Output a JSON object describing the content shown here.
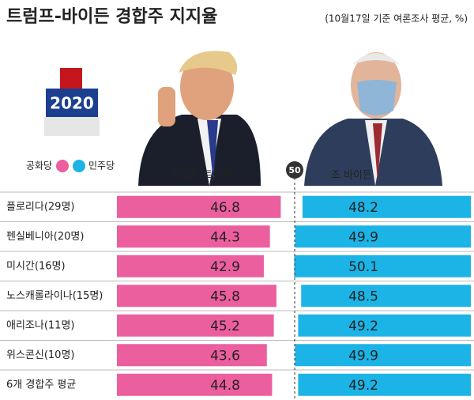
{
  "chart_data": {
    "type": "diverging_bar",
    "title": "트럼프-바이든 경합주 지지율",
    "subtitle": "(10월17일 기준 여론조사 평균, %)",
    "icon_text": "2020",
    "midline": 50,
    "categories": [
      "플로리다(29명)",
      "펜실베니아(20명)",
      "미시간(16명)",
      "노스캐롤라이나(15명)",
      "애리조나(11명)",
      "위스콘신(10명)",
      "6개 경합주 평균"
    ],
    "series": [
      {
        "name": "공화당",
        "candidate": "도널드 트럼프",
        "color": "#ec5f9f",
        "values": [
          46.8,
          44.3,
          42.9,
          45.8,
          45.2,
          43.6,
          44.8
        ]
      },
      {
        "name": "민주당",
        "candidate": "조 바이든",
        "color": "#1cb4e6",
        "values": [
          48.2,
          49.9,
          50.1,
          48.5,
          49.2,
          49.9,
          49.2
        ]
      }
    ]
  }
}
